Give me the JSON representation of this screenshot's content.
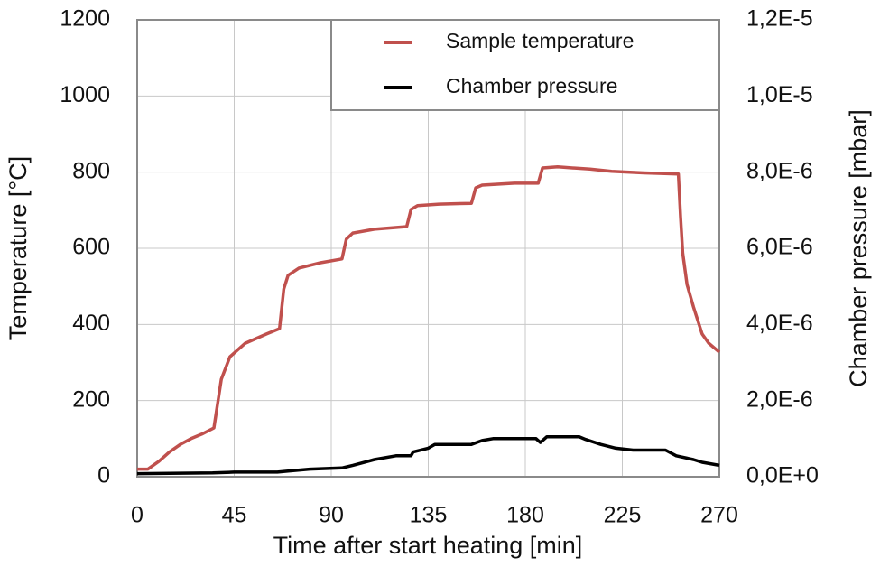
{
  "chart_data": {
    "type": "line",
    "xlabel": "Time after start heating [min]",
    "ylabel": "Temperature [°C]",
    "y2label": "Chamber pressure [mbar]",
    "xlim": [
      0,
      270
    ],
    "xticks": [
      0,
      45,
      90,
      135,
      180,
      225,
      270
    ],
    "ylim": [
      0,
      1200
    ],
    "yticks": [
      0,
      200,
      400,
      600,
      800,
      1000,
      1200
    ],
    "y2lim": [
      0,
      1.2e-05
    ],
    "y2ticks": [
      {
        "value": 0,
        "label": "0,0E+0"
      },
      {
        "value": 2e-06,
        "label": "2,0E-6"
      },
      {
        "value": 4e-06,
        "label": "4,0E-6"
      },
      {
        "value": 6e-06,
        "label": "6,0E-6"
      },
      {
        "value": 8e-06,
        "label": "8,0E-6"
      },
      {
        "value": 1e-05,
        "label": "1,0E-5"
      },
      {
        "value": 1.2e-05,
        "label": "1,2E-5"
      }
    ],
    "grid": true,
    "legend": "upper right",
    "series": [
      {
        "name": "Sample temperature",
        "color": "#c0504d",
        "x": [
          0,
          5,
          10,
          15,
          20,
          25,
          30,
          35.6,
          39,
          43,
          50,
          60,
          66,
          68,
          70,
          75,
          85,
          95,
          97,
          100,
          110,
          125,
          127,
          130,
          140,
          155,
          157,
          160,
          175,
          186,
          188,
          195,
          210,
          220,
          235,
          251,
          252,
          253,
          255,
          258,
          262,
          265,
          270
        ],
        "values": [
          20,
          20,
          40,
          65,
          85,
          100,
          112,
          128,
          256,
          315,
          350,
          375,
          389,
          493,
          529,
          548,
          562,
          572,
          624,
          640,
          650,
          657,
          702,
          712,
          716,
          718,
          759,
          766,
          771,
          771,
          811,
          814,
          808,
          802,
          798,
          795,
          683,
          588,
          505,
          446,
          375,
          351,
          327
        ]
      },
      {
        "name": "Chamber pressure",
        "color": "#000000",
        "axis": "y2",
        "x": [
          0,
          35,
          45,
          65,
          70,
          80,
          95,
          100,
          110,
          120,
          127,
          128,
          135,
          138,
          155,
          160,
          165,
          185,
          187,
          190,
          205,
          208,
          215,
          222,
          230,
          245,
          250,
          258,
          262,
          270
        ],
        "values": [
          8e-08,
          1e-07,
          1.2e-07,
          1.2e-07,
          1.5e-07,
          2e-07,
          2.3e-07,
          3e-07,
          4.5e-07,
          5.5e-07,
          5.5e-07,
          6.5e-07,
          7.5e-07,
          8.5e-07,
          8.5e-07,
          9.5e-07,
          1e-06,
          1e-06,
          9e-07,
          1.05e-06,
          1.05e-06,
          9.8e-07,
          8.5e-07,
          7.5e-07,
          7e-07,
          7e-07,
          5.5e-07,
          4.5e-07,
          3.8e-07,
          3e-07
        ]
      }
    ]
  }
}
